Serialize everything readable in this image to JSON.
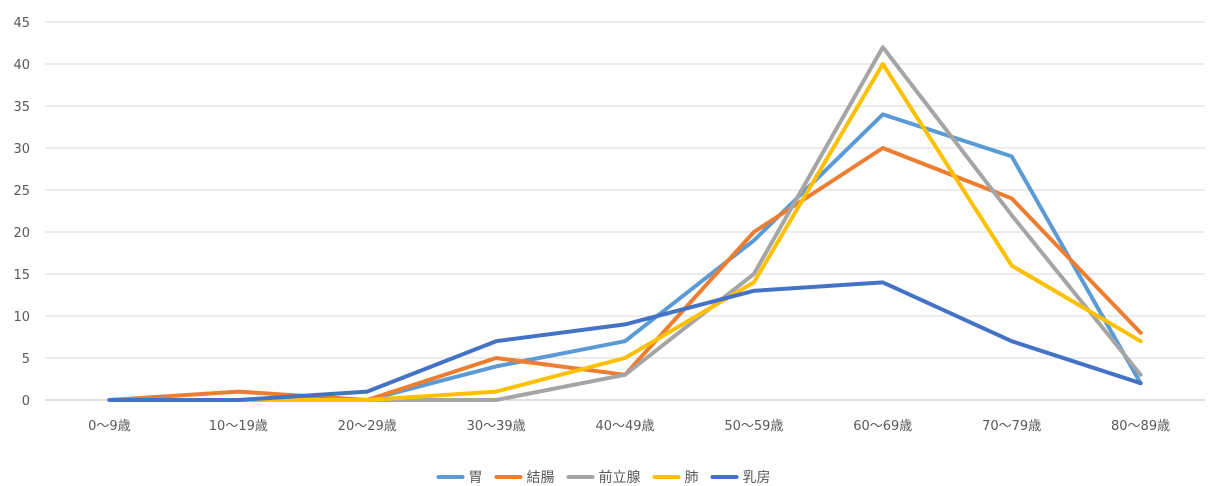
{
  "chart_data": {
    "type": "line",
    "title": "",
    "xlabel": "",
    "ylabel": "",
    "categories": [
      "0〜9歳",
      "10〜19歳",
      "20〜29歳",
      "30〜39歳",
      "40〜49歳",
      "50〜59歳",
      "60〜69歳",
      "70〜79歳",
      "80〜89歳"
    ],
    "ylim": [
      0,
      45
    ],
    "yticks": [
      0,
      5,
      10,
      15,
      20,
      25,
      30,
      35,
      40,
      45
    ],
    "grid": true,
    "legend_position": "bottom",
    "series": [
      {
        "name": "胃",
        "color": "#5B9BD5",
        "values": [
          0,
          0,
          0,
          4,
          7,
          19,
          34,
          29,
          2
        ]
      },
      {
        "name": "結腸",
        "color": "#ED7D31",
        "values": [
          0,
          1,
          0,
          5,
          3,
          20,
          30,
          24,
          8
        ]
      },
      {
        "name": "前立腺",
        "color": "#A5A5A5",
        "values": [
          0,
          0,
          0,
          0,
          3,
          15,
          42,
          22,
          3
        ]
      },
      {
        "name": "肺",
        "color": "#FFC000",
        "values": [
          0,
          0,
          0,
          1,
          5,
          14,
          40,
          16,
          7
        ]
      },
      {
        "name": "乳房",
        "color": "#4472C4",
        "values": [
          0,
          0,
          1,
          7,
          9,
          13,
          14,
          7,
          2
        ]
      }
    ]
  }
}
